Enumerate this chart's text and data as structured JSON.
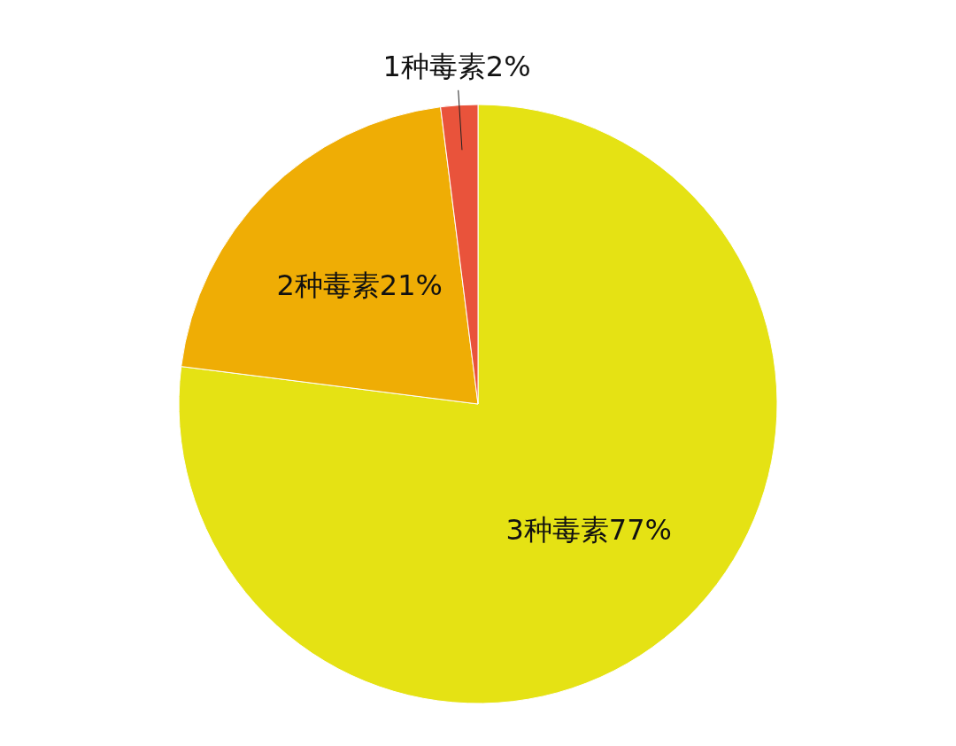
{
  "chart_data": {
    "type": "pie",
    "categories": [
      "3种毒素",
      "2种毒素",
      "1种毒素"
    ],
    "values": [
      77,
      21,
      2
    ],
    "colors": [
      "#e5e214",
      "#efad05",
      "#e9533b"
    ],
    "value_labels": [
      "77%",
      "21%",
      "2%"
    ]
  }
}
